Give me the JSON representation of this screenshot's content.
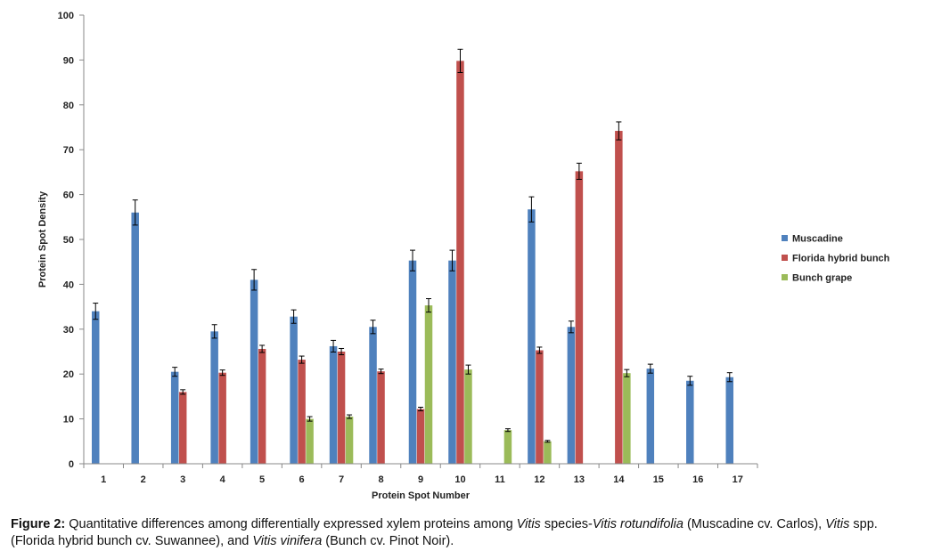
{
  "chart_data": {
    "type": "bar",
    "title": "",
    "xlabel": "Protein Spot Number",
    "ylabel": "Protein Spot Density",
    "ylim": [
      0,
      100
    ],
    "yticks": [
      0,
      10,
      20,
      30,
      40,
      50,
      60,
      70,
      80,
      90,
      100
    ],
    "categories": [
      "1",
      "2",
      "3",
      "4",
      "5",
      "6",
      "7",
      "8",
      "9",
      "10",
      "11",
      "12",
      "13",
      "14",
      "15",
      "16",
      "17"
    ],
    "legend_position": "right",
    "series": [
      {
        "name": "Muscadine",
        "color": "#4f81bd",
        "values": [
          34,
          56,
          20.5,
          29.5,
          41,
          32.8,
          26.2,
          30.5,
          45.3,
          45.3,
          null,
          56.7,
          30.5,
          null,
          21.2,
          18.5,
          19.3
        ],
        "errors": [
          1.8,
          2.8,
          1.0,
          1.5,
          2.3,
          1.5,
          1.3,
          1.5,
          2.3,
          2.3,
          null,
          2.8,
          1.3,
          null,
          1.0,
          1.0,
          1.0
        ]
      },
      {
        "name": "Florida hybrid bunch",
        "color": "#c0504d",
        "values": [
          null,
          null,
          16,
          20.3,
          25.6,
          23.2,
          25,
          20.6,
          12.2,
          89.8,
          null,
          25.3,
          65.2,
          74.2,
          null,
          null,
          null
        ],
        "errors": [
          null,
          null,
          0.5,
          0.6,
          0.8,
          0.8,
          0.7,
          0.5,
          0.4,
          2.6,
          null,
          0.7,
          1.8,
          2.0,
          null,
          null,
          null
        ]
      },
      {
        "name": "Bunch grape",
        "color": "#9bbb59",
        "values": [
          null,
          null,
          null,
          null,
          null,
          10,
          10.5,
          null,
          35.3,
          21,
          7.5,
          5,
          null,
          20.2,
          null,
          null,
          null
        ],
        "errors": [
          null,
          null,
          null,
          null,
          null,
          0.5,
          0.4,
          null,
          1.5,
          1.0,
          0.3,
          0.2,
          null,
          0.8,
          null,
          null,
          null
        ]
      }
    ]
  },
  "caption": {
    "label": "Figure 2:",
    "text_1": " Quantitative differences among differentially expressed xylem proteins among ",
    "italic_1": "Vitis",
    "text_2": " species-",
    "italic_2": "Vitis rotundifolia",
    "text_3": " (Muscadine cv. Carlos), ",
    "italic_3": "Vitis",
    "text_4": " spp. (Florida hybrid bunch cv. Suwannee), and ",
    "italic_4": "Vitis vinifera",
    "text_5": " (Bunch cv. Pinot Noir)."
  }
}
